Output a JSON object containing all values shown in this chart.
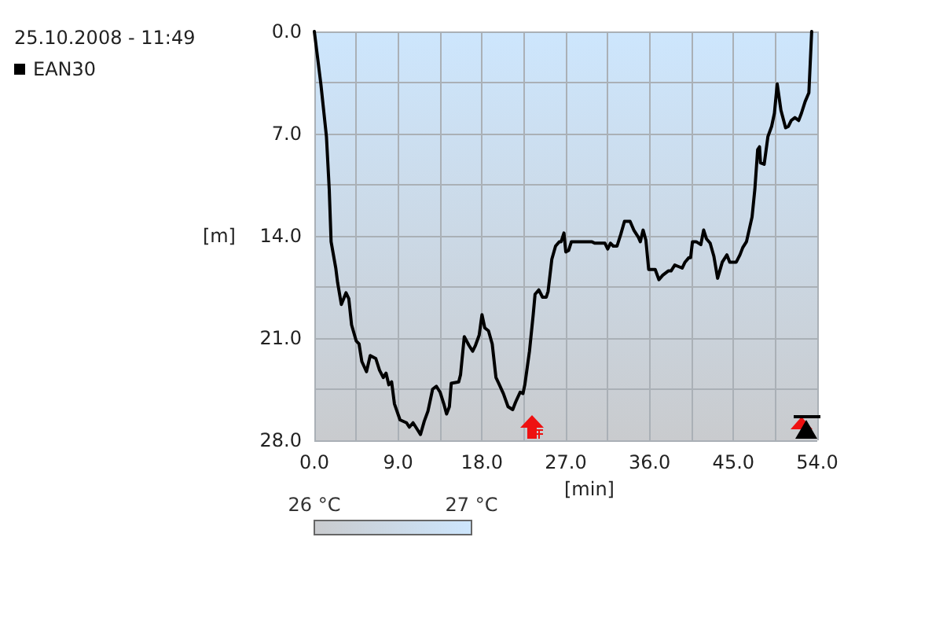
{
  "chart_data": {
    "type": "line",
    "title": "25.10.2008 - 11:49",
    "xlabel": "[min]",
    "ylabel": "[m]",
    "xlim": [
      0,
      54
    ],
    "xticks": [
      {
        "value": 0,
        "label": "0.0"
      },
      {
        "value": 4.5,
        "label": null
      },
      {
        "value": 9,
        "label": "9.0"
      },
      {
        "value": 13.5,
        "label": null
      },
      {
        "value": 18,
        "label": "18.0"
      },
      {
        "value": 22.5,
        "label": null
      },
      {
        "value": 27,
        "label": "27.0"
      },
      {
        "value": 31.5,
        "label": null
      },
      {
        "value": 36,
        "label": "36.0"
      },
      {
        "value": 40.5,
        "label": null
      },
      {
        "value": 45,
        "label": "45.0"
      },
      {
        "value": 49.5,
        "label": null
      },
      {
        "value": 54,
        "label": "54.0"
      }
    ],
    "ylim": [
      28,
      0
    ],
    "yticks": [
      {
        "value": 0,
        "label": "0.0"
      },
      {
        "value": 3.5,
        "label": null
      },
      {
        "value": 7,
        "label": "7.0"
      },
      {
        "value": 10.5,
        "label": null
      },
      {
        "value": 14,
        "label": "14.0"
      },
      {
        "value": 17.5,
        "label": null
      },
      {
        "value": 21,
        "label": "21.0"
      },
      {
        "value": 24.5,
        "label": null
      },
      {
        "value": 28,
        "label": "28.0"
      }
    ],
    "grid": true,
    "legend": "top left",
    "marker": "none",
    "line_style": "solid",
    "clim": [
      26,
      27
    ],
    "cticks": [
      {
        "value": 26,
        "label": "26 °C"
      },
      {
        "value": 27,
        "label": "27 °C"
      }
    ],
    "series": [
      {
        "name": "EAN30",
        "color": "#000000",
        "x": [
          0,
          0.7,
          1.3,
          1.6,
          1.8,
          2.3,
          2.5,
          2.9,
          3.4,
          3.7,
          4.0,
          4.5,
          4.8,
          5.1,
          5.6,
          6.0,
          6.6,
          7.0,
          7.4,
          7.7,
          8.0,
          8.3,
          8.6,
          9.2,
          9.9,
          10.2,
          10.6,
          11.1,
          11.4,
          11.8,
          12.2,
          12.7,
          13.1,
          13.5,
          13.9,
          14.2,
          14.5,
          14.7,
          15.5,
          15.7,
          16.1,
          16.6,
          17.0,
          17.3,
          17.7,
          18.0,
          18.3,
          18.7,
          19.1,
          19.5,
          19.8,
          20.3,
          20.8,
          21.3,
          21.6,
          22.1,
          22.4,
          22.6,
          23.1,
          23.5,
          23.7,
          24.1,
          24.5,
          24.9,
          25.1,
          25.5,
          25.9,
          26.3,
          26.5,
          26.8,
          27.0,
          27.3,
          27.6,
          29.8,
          30.1,
          31.2,
          31.5,
          31.8,
          32.1,
          32.5,
          32.9,
          33.3,
          33.9,
          34.3,
          34.8,
          35.0,
          35.3,
          35.6,
          35.9,
          36.6,
          37.0,
          37.4,
          38.0,
          38.3,
          38.7,
          39.1,
          39.5,
          39.8,
          40.2,
          40.4,
          40.6,
          41.0,
          41.5,
          41.8,
          42.1,
          42.5,
          42.9,
          43.3,
          43.8,
          44.3,
          44.6,
          45.3,
          45.7,
          46.0,
          46.4,
          47.0,
          47.3,
          47.6,
          47.8,
          47.9,
          48.3,
          48.7,
          49.1,
          49.4,
          49.7,
          50.1,
          50.6,
          50.9,
          51.2,
          51.6,
          52.0,
          52.3,
          52.7,
          53.1,
          53.4
        ],
        "values": [
          0,
          3.6,
          7.2,
          10.8,
          14.4,
          16.2,
          17.2,
          18.7,
          17.9,
          18.3,
          20.1,
          21.2,
          21.4,
          22.6,
          23.3,
          22.2,
          22.4,
          23.2,
          23.7,
          23.4,
          24.2,
          24.0,
          25.5,
          26.6,
          26.8,
          27.1,
          26.8,
          27.3,
          27.6,
          26.7,
          26.0,
          24.5,
          24.3,
          24.7,
          25.5,
          26.2,
          25.7,
          24.1,
          24.0,
          23.5,
          20.9,
          21.5,
          21.9,
          21.5,
          20.8,
          19.4,
          20.3,
          20.5,
          21.4,
          23.7,
          24.1,
          24.8,
          25.7,
          25.9,
          25.4,
          24.7,
          24.8,
          24.2,
          21.9,
          19.4,
          18.0,
          17.7,
          18.2,
          18.2,
          17.8,
          15.6,
          14.7,
          14.4,
          14.4,
          13.8,
          15.1,
          15.0,
          14.4,
          14.4,
          14.5,
          14.5,
          14.9,
          14.5,
          14.7,
          14.7,
          13.9,
          13.0,
          13.0,
          13.6,
          14.1,
          14.4,
          13.6,
          14.3,
          16.3,
          16.3,
          17.0,
          16.7,
          16.4,
          16.4,
          16.0,
          16.1,
          16.2,
          15.8,
          15.5,
          15.5,
          14.4,
          14.4,
          14.6,
          13.6,
          14.2,
          14.5,
          15.4,
          16.9,
          15.8,
          15.3,
          15.8,
          15.8,
          15.3,
          14.8,
          14.4,
          12.7,
          10.8,
          8.1,
          7.9,
          9.0,
          9.1,
          7.2,
          6.5,
          5.6,
          3.6,
          5.4,
          6.6,
          6.5,
          6.1,
          5.9,
          6.1,
          5.6,
          4.8,
          4.2,
          0
        ]
      }
    ]
  }
}
